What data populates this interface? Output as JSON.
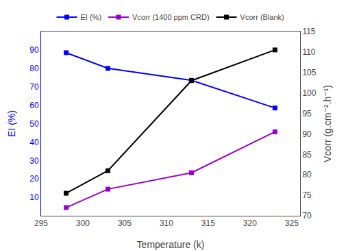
{
  "chart_data": {
    "type": "line",
    "x": [
      298,
      303,
      313,
      323
    ],
    "series": [
      {
        "name": "EI (%)",
        "color": "#0000FF",
        "values": [
          88.5,
          80.0,
          73.5,
          58.5
        ]
      },
      {
        "name": "Vcorr (1400 ppm CRD)",
        "color": "#9900CC",
        "values": [
          72.0,
          76.5,
          80.5,
          90.5
        ],
        "axis": "y2"
      },
      {
        "name": "Vcorr (Blank)",
        "color": "#000000",
        "values": [
          75.5,
          81.0,
          103.0,
          110.5
        ],
        "axis": "y2"
      }
    ],
    "xlabel": "Temperature (k)",
    "ylabel": "EI (%)",
    "y2label": "Vcorr (g.cm⁻².h⁻¹)",
    "xlim": [
      295,
      326
    ],
    "xticks": [
      295,
      300,
      305,
      310,
      315,
      320,
      325
    ],
    "ylim": [
      0,
      100
    ],
    "yticks": [
      10,
      20,
      30,
      40,
      50,
      60,
      70,
      80,
      90
    ],
    "y2lim": [
      70,
      115
    ],
    "y2ticks": [
      70,
      75,
      80,
      85,
      90,
      95,
      100,
      105,
      110,
      115
    ],
    "marker": "square",
    "line_style": "solid",
    "grid": false,
    "legend": "top"
  }
}
